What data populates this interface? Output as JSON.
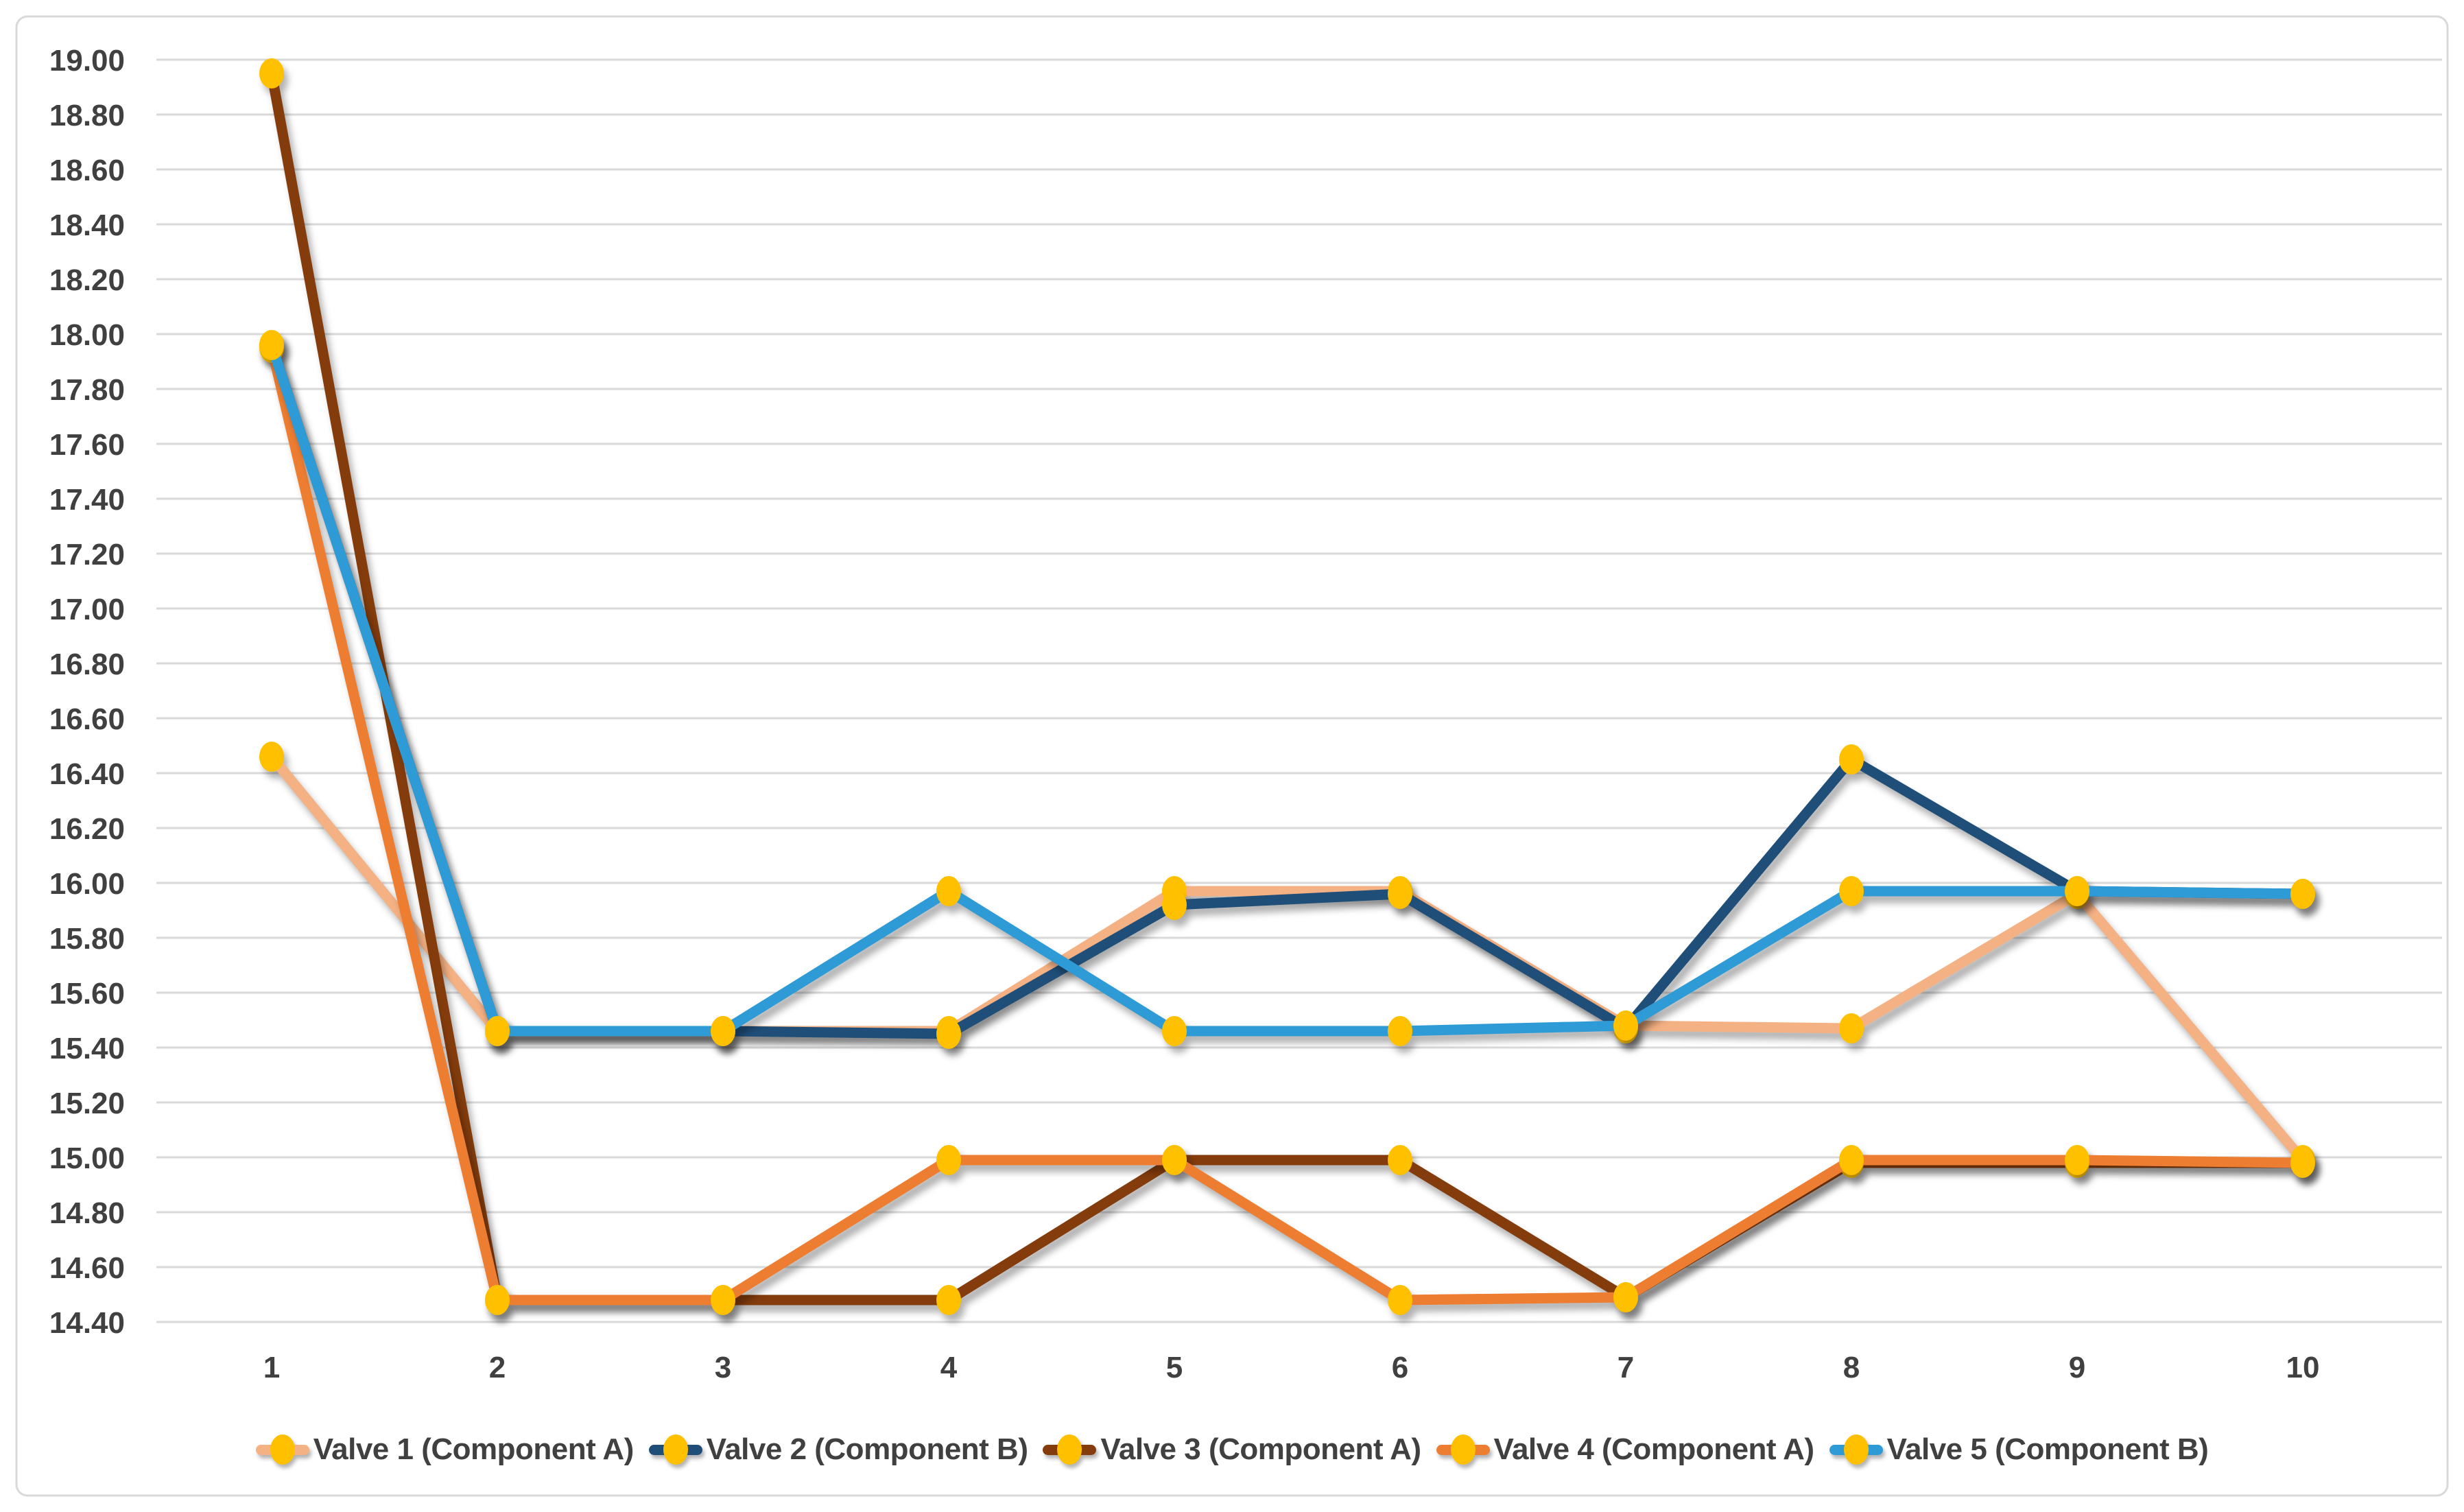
{
  "chart_data": {
    "type": "line",
    "title": "",
    "xlabel": "",
    "ylabel": "",
    "x_labels": [
      "1",
      "2",
      "3",
      "4",
      "5",
      "6",
      "7",
      "8",
      "9",
      "10"
    ],
    "y_tick_labels": [
      "19.00",
      "18.80",
      "18.60",
      "18.40",
      "18.20",
      "18.00",
      "17.80",
      "17.60",
      "17.40",
      "17.20",
      "17.00",
      "16.80",
      "16.60",
      "16.40",
      "16.20",
      "16.00",
      "15.80",
      "15.60",
      "15.40",
      "15.20",
      "15.00",
      "14.80",
      "14.60",
      "14.40"
    ],
    "ylim": [
      14.4,
      19.0
    ],
    "ytick_step": 0.2,
    "grid": true,
    "legend_position": "bottom",
    "marker_shape": "circle",
    "marker_color": "#FFC000",
    "gridline_color": "#D9D9D9",
    "border_color": "#D9D9D9",
    "background_color": "#FFFFFF",
    "text_color": "#404040",
    "series": [
      {
        "name": "Valve 1 (Component A)",
        "color": "#F4B183",
        "values": [
          16.46,
          15.46,
          15.46,
          15.46,
          15.97,
          15.97,
          15.48,
          15.47,
          15.96,
          14.99
        ]
      },
      {
        "name": "Valve 2 (Component B)",
        "color": "#1F4E79",
        "values": [
          17.96,
          15.46,
          15.46,
          15.45,
          15.92,
          15.96,
          15.47,
          16.45,
          15.97,
          15.96
        ]
      },
      {
        "name": "Valve 3 (Component A)",
        "color": "#843C0C",
        "values": [
          18.95,
          14.48,
          14.48,
          14.48,
          14.99,
          14.99,
          14.49,
          14.98,
          14.98,
          14.98
        ]
      },
      {
        "name": "Valve 4 (Component A)",
        "color": "#ED7D31",
        "values": [
          17.95,
          14.48,
          14.48,
          14.99,
          14.99,
          14.48,
          14.49,
          14.99,
          14.99,
          14.98
        ]
      },
      {
        "name": "Valve 5 (Component B)",
        "color": "#2E9BD6",
        "values": [
          17.96,
          15.46,
          15.46,
          15.97,
          15.46,
          15.46,
          15.48,
          15.97,
          15.97,
          15.96
        ]
      }
    ]
  }
}
